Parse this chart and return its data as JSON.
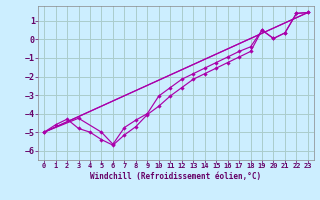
{
  "background_color": "#cceeff",
  "grid_color": "#aacccc",
  "line_color": "#aa00aa",
  "xlim": [
    -0.5,
    23.5
  ],
  "ylim": [
    -6.5,
    1.8
  ],
  "xticks": [
    0,
    1,
    2,
    3,
    4,
    5,
    6,
    7,
    8,
    9,
    10,
    11,
    12,
    13,
    14,
    15,
    16,
    17,
    18,
    19,
    20,
    21,
    22,
    23
  ],
  "yticks": [
    1,
    0,
    -1,
    -2,
    -3,
    -4,
    -5,
    -6
  ],
  "xlabel": "Windchill (Refroidissement éolien,°C)",
  "line1_x": [
    0,
    1,
    2,
    3,
    4,
    5,
    6,
    7,
    8,
    9,
    10,
    11,
    12,
    13,
    14,
    15,
    16,
    17,
    18,
    19,
    20,
    21,
    22,
    23
  ],
  "line1_y": [
    -5.0,
    -4.6,
    -4.3,
    -4.8,
    -5.0,
    -5.4,
    -5.7,
    -5.15,
    -4.7,
    -4.05,
    -3.6,
    -3.05,
    -2.6,
    -2.15,
    -1.85,
    -1.55,
    -1.25,
    -0.95,
    -0.65,
    0.5,
    0.05,
    0.35,
    1.4,
    1.45
  ],
  "line2_x": [
    0,
    3,
    5,
    6,
    7,
    8,
    9,
    10,
    11,
    12,
    13,
    14,
    15,
    16,
    17,
    18,
    19,
    20,
    21,
    22,
    23
  ],
  "line2_y": [
    -5.0,
    -4.25,
    -5.0,
    -5.65,
    -4.75,
    -4.35,
    -4.0,
    -3.05,
    -2.6,
    -2.15,
    -1.85,
    -1.55,
    -1.25,
    -0.95,
    -0.65,
    -0.4,
    0.5,
    0.05,
    0.35,
    1.4,
    1.45
  ],
  "line3_x": [
    0,
    23
  ],
  "line3_y": [
    -5.0,
    1.45
  ],
  "line4_x": [
    0,
    23
  ],
  "line4_y": [
    -5.0,
    1.45
  ]
}
